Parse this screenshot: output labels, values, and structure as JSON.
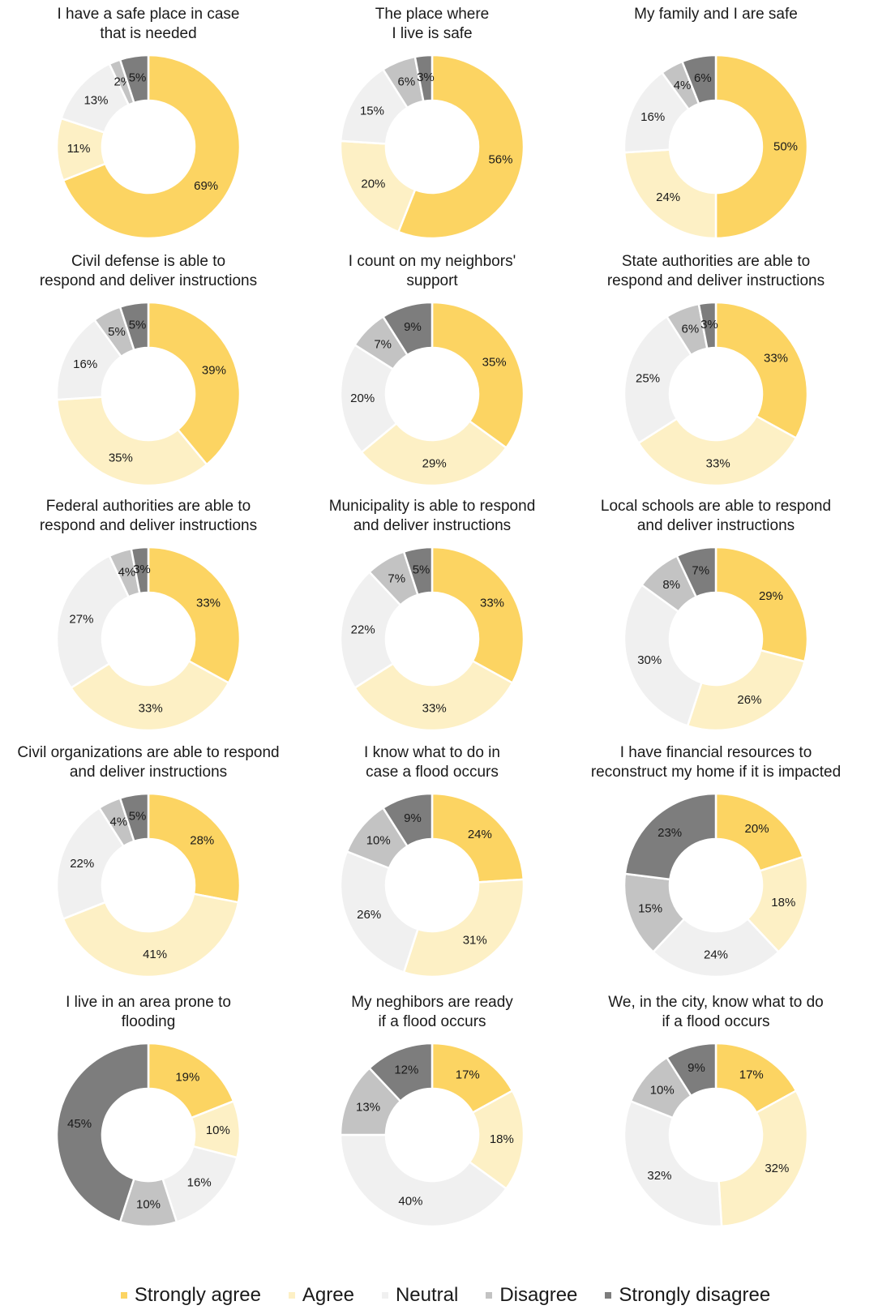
{
  "colors": {
    "Strongly agree": "#fcd462",
    "Agree": "#fdf0c5",
    "Neutral": "#f0f0f0",
    "Disagree": "#c3c3c3",
    "Strongly disagree": "#7d7d7d"
  },
  "chart_data": {
    "type": "pie",
    "variant": "donut",
    "slice_order": [
      "Strongly agree",
      "Agree",
      "Neutral",
      "Disagree",
      "Strongly disagree"
    ],
    "legend": {
      "placement": "bottom",
      "entries": [
        "Strongly agree",
        "Agree",
        "Neutral",
        "Disagree",
        "Strongly disagree"
      ]
    },
    "charts": [
      {
        "title": "I have a safe place in case\nthat is needed",
        "values": [
          69,
          11,
          13,
          2,
          5
        ]
      },
      {
        "title": "The  place where\nI live is safe",
        "values": [
          56,
          20,
          15,
          6,
          3
        ]
      },
      {
        "title": "My family and I are safe",
        "values": [
          50,
          24,
          16,
          4,
          6
        ]
      },
      {
        "title": "Civil defense is able to\nrespond and deliver instructions",
        "values": [
          39,
          35,
          16,
          5,
          5
        ]
      },
      {
        "title": "I count on my neighbors'\nsupport",
        "values": [
          35,
          29,
          20,
          7,
          9
        ]
      },
      {
        "title": "State authorities are able to\nrespond and deliver instructions",
        "values": [
          33,
          33,
          25,
          6,
          3
        ]
      },
      {
        "title": "Federal authorities are able to\nrespond and deliver instructions",
        "values": [
          33,
          33,
          27,
          4,
          3
        ]
      },
      {
        "title": "Municipality is able to respond\nand deliver instructions",
        "values": [
          33,
          33,
          22,
          7,
          5
        ]
      },
      {
        "title": "Local schools are able to respond\nand deliver instructions",
        "values": [
          29,
          26,
          30,
          8,
          7
        ]
      },
      {
        "title": "Civil organizations are able to respond\nand deliver instructions",
        "values": [
          28,
          41,
          22,
          4,
          5
        ]
      },
      {
        "title": "I know what to do in\ncase a flood occurs",
        "values": [
          24,
          31,
          26,
          10,
          9
        ]
      },
      {
        "title": "I have financial resources to\nreconstruct my home if it is impacted",
        "values": [
          20,
          18,
          24,
          15,
          23
        ]
      },
      {
        "title": "I live in an area prone to\nflooding",
        "values": [
          19,
          10,
          16,
          10,
          45
        ]
      },
      {
        "title": "My neghibors are ready\nif a flood occurs",
        "values": [
          17,
          18,
          40,
          13,
          12
        ]
      },
      {
        "title": "We, in the city, know what to do\nif a flood occurs",
        "values": [
          17,
          32,
          32,
          10,
          9
        ]
      }
    ]
  }
}
